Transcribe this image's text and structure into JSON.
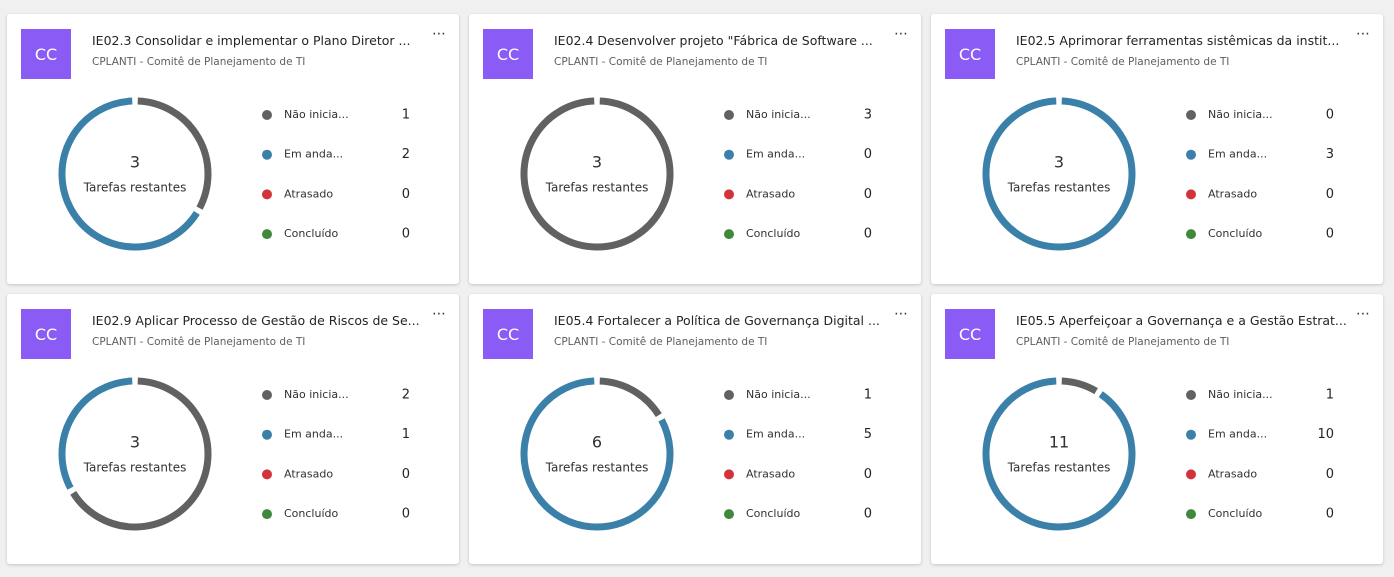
{
  "cards": [
    {
      "avatar": "CC",
      "title": "IE02.3 Consolidar e implementar o Plano Diretor ...",
      "subtitle": "CPLANTI - Comitê de Planejamento de TI",
      "remaining": 3,
      "remaining_label": "Tarefas restantes",
      "statuses": [
        {
          "label": "Não inicia...",
          "count": 1
        },
        {
          "label": "Em anda...",
          "count": 2
        },
        {
          "label": "Atrasado",
          "count": 0
        },
        {
          "label": "Concluído",
          "count": 0
        }
      ]
    },
    {
      "avatar": "CC",
      "title": "IE02.4 Desenvolver projeto \"Fábrica de Software ...",
      "subtitle": "CPLANTI - Comitê de Planejamento de TI",
      "remaining": 3,
      "remaining_label": "Tarefas restantes",
      "statuses": [
        {
          "label": "Não inicia...",
          "count": 3
        },
        {
          "label": "Em anda...",
          "count": 0
        },
        {
          "label": "Atrasado",
          "count": 0
        },
        {
          "label": "Concluído",
          "count": 0
        }
      ]
    },
    {
      "avatar": "CC",
      "title": "IE02.5 Aprimorar ferramentas sistêmicas da instit...",
      "subtitle": "CPLANTI - Comitê de Planejamento de TI",
      "remaining": 3,
      "remaining_label": "Tarefas restantes",
      "statuses": [
        {
          "label": "Não inicia...",
          "count": 0
        },
        {
          "label": "Em anda...",
          "count": 3
        },
        {
          "label": "Atrasado",
          "count": 0
        },
        {
          "label": "Concluído",
          "count": 0
        }
      ]
    },
    {
      "avatar": "CC",
      "title": "IE02.9 Aplicar Processo de Gestão de Riscos de Se...",
      "subtitle": "CPLANTI - Comitê de Planejamento de TI",
      "remaining": 3,
      "remaining_label": "Tarefas restantes",
      "statuses": [
        {
          "label": "Não inicia...",
          "count": 2
        },
        {
          "label": "Em anda...",
          "count": 1
        },
        {
          "label": "Atrasado",
          "count": 0
        },
        {
          "label": "Concluído",
          "count": 0
        }
      ]
    },
    {
      "avatar": "CC",
      "title": "IE05.4 Fortalecer a Política de Governança Digital ...",
      "subtitle": "CPLANTI - Comitê de Planejamento de TI",
      "remaining": 6,
      "remaining_label": "Tarefas restantes",
      "statuses": [
        {
          "label": "Não inicia...",
          "count": 1
        },
        {
          "label": "Em anda...",
          "count": 5
        },
        {
          "label": "Atrasado",
          "count": 0
        },
        {
          "label": "Concluído",
          "count": 0
        }
      ]
    },
    {
      "avatar": "CC",
      "title": "IE05.5 Aperfeiçoar a Governança e a Gestão Estrat...",
      "subtitle": "CPLANTI - Comitê de Planejamento de TI",
      "remaining": 11,
      "remaining_label": "Tarefas restantes",
      "statuses": [
        {
          "label": "Não inicia...",
          "count": 1
        },
        {
          "label": "Em anda...",
          "count": 10
        },
        {
          "label": "Atrasado",
          "count": 0
        },
        {
          "label": "Concluído",
          "count": 0
        }
      ]
    }
  ],
  "status_colors": [
    "#616161",
    "#3a80a9",
    "#d13438",
    "#3f8a3a"
  ]
}
